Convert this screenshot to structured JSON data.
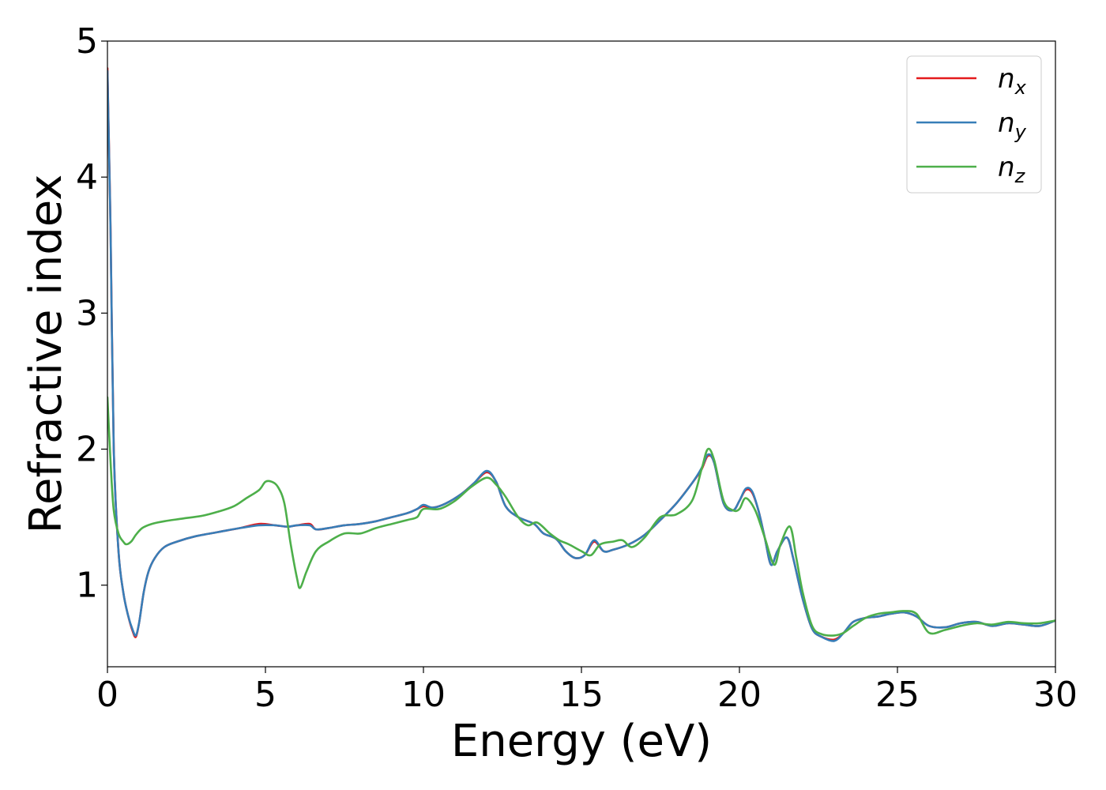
{
  "chart_data": {
    "type": "line",
    "xlabel": "Energy (eV)",
    "ylabel": "Refractive index",
    "xlim": [
      0,
      30
    ],
    "ylim": [
      0.4,
      5
    ],
    "xticks": [
      "0",
      "5",
      "10",
      "15",
      "20",
      "25",
      "30"
    ],
    "yticks": [
      "1",
      "2",
      "3",
      "4",
      "5"
    ],
    "grid": false,
    "legend_position": "top-right",
    "series": [
      {
        "name": "n",
        "subscript": "x",
        "color": "#e41a1c",
        "x": [
          0,
          0.1,
          0.2,
          0.35,
          0.5,
          0.65,
          0.8,
          0.9,
          1.0,
          1.15,
          1.3,
          1.5,
          1.8,
          2.2,
          2.8,
          3.5,
          4.2,
          4.8,
          5.3,
          5.7,
          6.0,
          6.4,
          6.6,
          7.0,
          7.5,
          8.0,
          8.5,
          9.0,
          9.5,
          9.8,
          10.0,
          10.3,
          10.7,
          11.2,
          11.6,
          12.0,
          12.3,
          12.6,
          13.0,
          13.5,
          13.8,
          14.2,
          14.5,
          14.8,
          15.1,
          15.4,
          15.7,
          16.0,
          16.5,
          17.0,
          17.5,
          18.0,
          18.5,
          18.8,
          19.0,
          19.2,
          19.5,
          19.8,
          20.0,
          20.2,
          20.4,
          20.6,
          20.8,
          21.0,
          21.2,
          21.5,
          21.7,
          22.0,
          22.3,
          22.6,
          23.0,
          23.3,
          23.6,
          24.0,
          24.4,
          24.8,
          25.2,
          25.6,
          26.0,
          26.5,
          27.0,
          27.5,
          28.0,
          28.5,
          29.0,
          29.5,
          30.0
        ],
        "y": [
          4.8,
          3.6,
          2.0,
          1.25,
          0.95,
          0.78,
          0.66,
          0.62,
          0.72,
          0.95,
          1.1,
          1.2,
          1.28,
          1.32,
          1.36,
          1.39,
          1.42,
          1.45,
          1.44,
          1.43,
          1.44,
          1.45,
          1.41,
          1.42,
          1.44,
          1.45,
          1.47,
          1.5,
          1.53,
          1.56,
          1.58,
          1.57,
          1.6,
          1.67,
          1.75,
          1.83,
          1.76,
          1.58,
          1.5,
          1.45,
          1.38,
          1.34,
          1.25,
          1.2,
          1.22,
          1.32,
          1.25,
          1.26,
          1.3,
          1.37,
          1.48,
          1.6,
          1.75,
          1.85,
          1.95,
          1.9,
          1.6,
          1.55,
          1.62,
          1.7,
          1.68,
          1.55,
          1.35,
          1.15,
          1.25,
          1.35,
          1.2,
          0.9,
          0.68,
          0.62,
          0.6,
          0.65,
          0.73,
          0.76,
          0.77,
          0.79,
          0.8,
          0.77,
          0.7,
          0.69,
          0.72,
          0.73,
          0.7,
          0.72,
          0.71,
          0.7,
          0.74
        ]
      },
      {
        "name": "n",
        "subscript": "y",
        "color": "#377eb8",
        "x": [
          0,
          0.1,
          0.2,
          0.35,
          0.5,
          0.65,
          0.8,
          0.9,
          1.0,
          1.15,
          1.3,
          1.5,
          1.8,
          2.2,
          2.8,
          3.5,
          4.2,
          4.8,
          5.3,
          5.7,
          6.0,
          6.4,
          6.6,
          7.0,
          7.5,
          8.0,
          8.5,
          9.0,
          9.5,
          9.8,
          10.0,
          10.3,
          10.7,
          11.2,
          11.6,
          12.0,
          12.3,
          12.6,
          13.0,
          13.5,
          13.8,
          14.2,
          14.5,
          14.8,
          15.1,
          15.4,
          15.7,
          16.0,
          16.5,
          17.0,
          17.5,
          18.0,
          18.5,
          18.8,
          19.0,
          19.2,
          19.5,
          19.8,
          20.0,
          20.2,
          20.4,
          20.6,
          20.8,
          21.0,
          21.2,
          21.5,
          21.7,
          22.0,
          22.3,
          22.6,
          23.0,
          23.3,
          23.6,
          24.0,
          24.4,
          24.8,
          25.2,
          25.6,
          26.0,
          26.5,
          27.0,
          27.5,
          28.0,
          28.5,
          29.0,
          29.5,
          30.0
        ],
        "y": [
          4.78,
          3.58,
          1.99,
          1.25,
          0.95,
          0.78,
          0.67,
          0.63,
          0.72,
          0.95,
          1.1,
          1.2,
          1.28,
          1.32,
          1.36,
          1.39,
          1.42,
          1.44,
          1.44,
          1.43,
          1.44,
          1.44,
          1.41,
          1.42,
          1.44,
          1.45,
          1.47,
          1.5,
          1.53,
          1.56,
          1.59,
          1.57,
          1.6,
          1.67,
          1.75,
          1.84,
          1.76,
          1.58,
          1.5,
          1.45,
          1.38,
          1.34,
          1.25,
          1.2,
          1.22,
          1.33,
          1.25,
          1.26,
          1.3,
          1.37,
          1.48,
          1.6,
          1.75,
          1.86,
          1.96,
          1.9,
          1.6,
          1.55,
          1.62,
          1.71,
          1.69,
          1.55,
          1.35,
          1.15,
          1.25,
          1.35,
          1.2,
          0.9,
          0.68,
          0.62,
          0.59,
          0.65,
          0.73,
          0.76,
          0.77,
          0.79,
          0.8,
          0.77,
          0.7,
          0.69,
          0.72,
          0.73,
          0.7,
          0.72,
          0.71,
          0.7,
          0.74
        ]
      },
      {
        "name": "n",
        "subscript": "z",
        "color": "#4daf4a",
        "x": [
          0,
          0.1,
          0.2,
          0.35,
          0.5,
          0.6,
          0.75,
          0.9,
          1.1,
          1.4,
          1.8,
          2.4,
          3.0,
          3.5,
          4.0,
          4.4,
          4.8,
          5.0,
          5.2,
          5.4,
          5.6,
          5.8,
          6.0,
          6.1,
          6.3,
          6.6,
          7.0,
          7.5,
          8.0,
          8.5,
          9.0,
          9.5,
          9.8,
          10.0,
          10.5,
          11.0,
          11.5,
          12.0,
          12.3,
          12.6,
          13.0,
          13.3,
          13.6,
          14.0,
          14.3,
          14.6,
          15.0,
          15.3,
          15.6,
          16.0,
          16.3,
          16.6,
          17.0,
          17.5,
          18.0,
          18.5,
          18.8,
          19.0,
          19.2,
          19.5,
          19.8,
          20.0,
          20.2,
          20.5,
          20.8,
          21.1,
          21.3,
          21.6,
          21.8,
          22.0,
          22.3,
          22.6,
          23.0,
          23.3,
          23.6,
          24.0,
          24.4,
          24.8,
          25.2,
          25.6,
          26.0,
          26.5,
          27.0,
          27.5,
          28.0,
          28.5,
          29.0,
          29.5,
          30.0
        ],
        "y": [
          2.38,
          1.9,
          1.55,
          1.38,
          1.32,
          1.3,
          1.32,
          1.37,
          1.42,
          1.45,
          1.47,
          1.49,
          1.51,
          1.54,
          1.58,
          1.64,
          1.7,
          1.76,
          1.76,
          1.72,
          1.6,
          1.3,
          1.05,
          0.98,
          1.1,
          1.25,
          1.32,
          1.38,
          1.38,
          1.42,
          1.45,
          1.48,
          1.5,
          1.56,
          1.56,
          1.62,
          1.72,
          1.79,
          1.74,
          1.65,
          1.5,
          1.44,
          1.46,
          1.38,
          1.33,
          1.3,
          1.25,
          1.22,
          1.3,
          1.32,
          1.33,
          1.28,
          1.35,
          1.5,
          1.52,
          1.62,
          1.85,
          2.0,
          1.92,
          1.62,
          1.55,
          1.56,
          1.64,
          1.55,
          1.35,
          1.15,
          1.3,
          1.43,
          1.2,
          0.95,
          0.7,
          0.64,
          0.63,
          0.65,
          0.7,
          0.76,
          0.79,
          0.8,
          0.81,
          0.79,
          0.65,
          0.67,
          0.7,
          0.72,
          0.71,
          0.73,
          0.72,
          0.72,
          0.74
        ]
      }
    ]
  }
}
